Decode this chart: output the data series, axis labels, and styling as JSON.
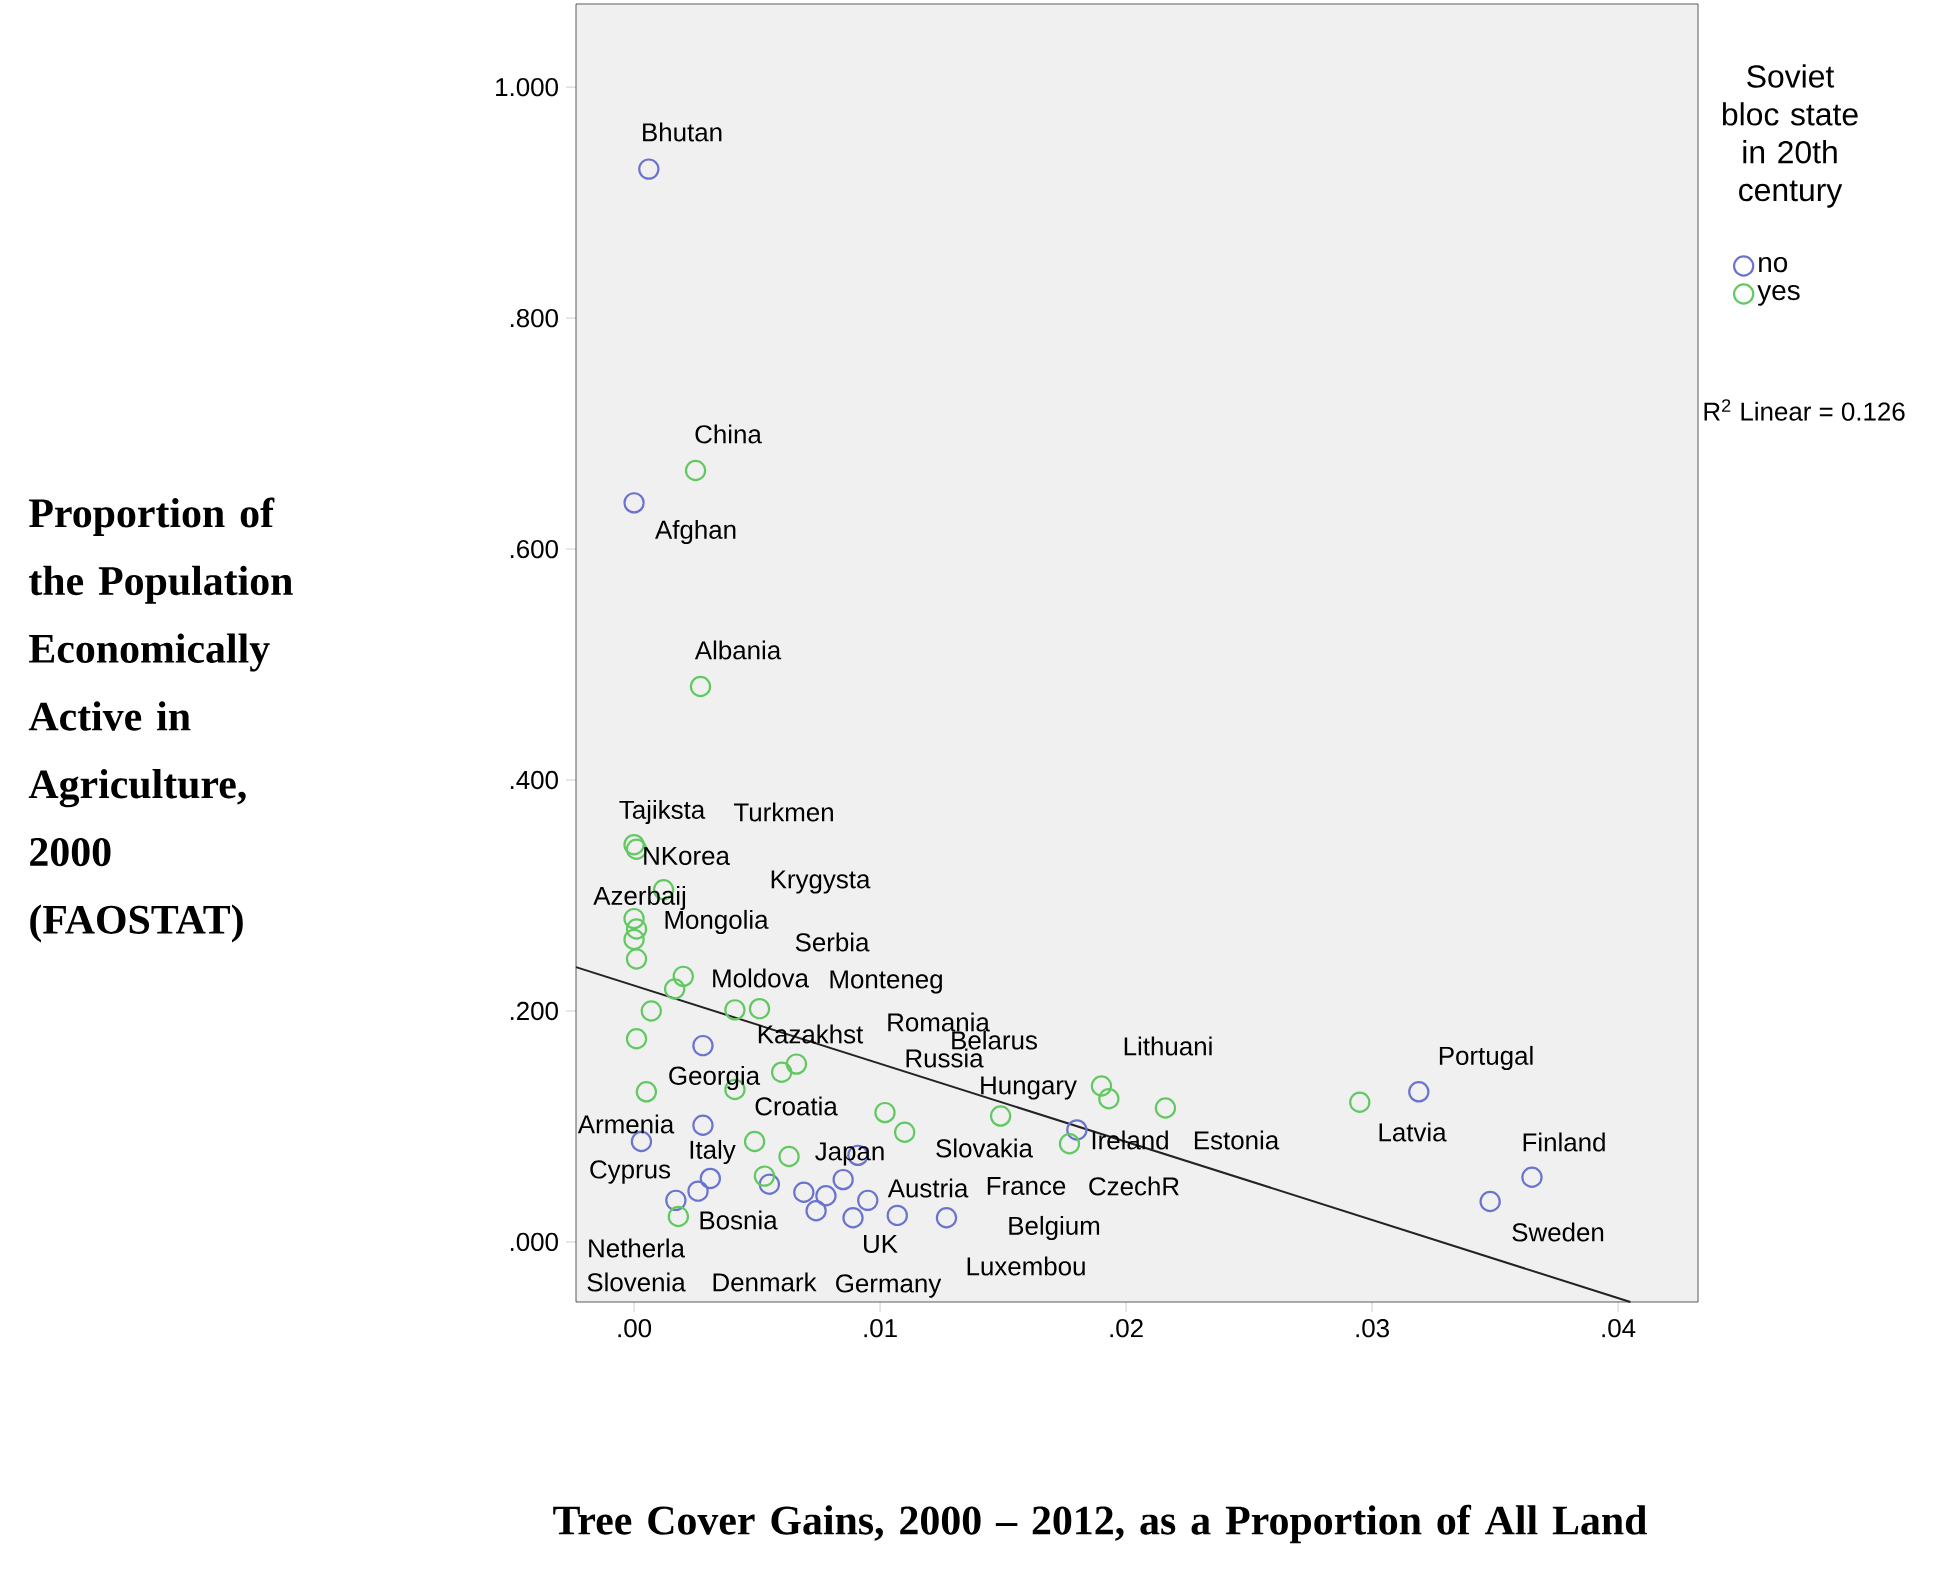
{
  "chart_data": {
    "type": "scatter",
    "xlabel": "Tree Cover Gains, 2000 – 2012, as a Proportion of All Land",
    "ylabel": "Proportion of the Population Economically Active in Agriculture, 2000 (FAOSTAT)",
    "legend_title": "Soviet bloc state in 20th century",
    "legend": "right",
    "marker": "circle",
    "xlim": [
      -0.00236,
      0.04325
    ],
    "ylim": [
      -0.052,
      1.072
    ],
    "xticks": [
      {
        "value": 0,
        "label": ".00"
      },
      {
        "value": 0.01,
        "label": ".01"
      },
      {
        "value": 0.02,
        "label": ".02"
      },
      {
        "value": 0.03,
        "label": ".03"
      },
      {
        "value": 0.04,
        "label": ".04"
      }
    ],
    "yticks": [
      {
        "value": 0,
        "label": ".000"
      },
      {
        "value": 0.2,
        "label": ".200"
      },
      {
        "value": 0.4,
        "label": ".400"
      },
      {
        "value": 0.6,
        "label": ".600"
      },
      {
        "value": 0.8,
        "label": ".800"
      },
      {
        "value": 1.0,
        "label": "1.000"
      }
    ],
    "series": [
      {
        "name": "no",
        "color": "#6a74cf",
        "x": [
          0.0006,
          0.0,
          0.0028,
          0.0028,
          0.0003,
          0.0031,
          0.0026,
          0.0017,
          0.0055,
          0.0069,
          0.0074,
          0.0078,
          0.0085,
          0.0091,
          0.0095,
          0.0089,
          0.0107,
          0.0127,
          0.018,
          0.0319,
          0.0365,
          0.0348
        ],
        "values": [
          0.929,
          0.64,
          0.17,
          0.101,
          0.087,
          0.055,
          0.044,
          0.036,
          0.05,
          0.043,
          0.027,
          0.04,
          0.054,
          0.075,
          0.036,
          0.021,
          0.023,
          0.021,
          0.097,
          0.13,
          0.056,
          0.035
        ]
      },
      {
        "name": "yes",
        "color": "#62c962",
        "x": [
          0.0025,
          0.0027,
          0.0,
          0.0001,
          0.0012,
          0.0,
          0.0001,
          0.0,
          0.0001,
          0.002,
          0.00165,
          0.0041,
          0.0051,
          0.0007,
          0.0001,
          0.0066,
          0.006,
          0.0005,
          0.0041,
          0.0102,
          0.011,
          0.0049,
          0.0063,
          0.0053,
          0.0018,
          0.0149,
          0.019,
          0.0193,
          0.0216,
          0.0177,
          0.0295
        ],
        "values": [
          0.668,
          0.481,
          0.344,
          0.34,
          0.305,
          0.28,
          0.271,
          0.262,
          0.245,
          0.23,
          0.219,
          0.201,
          0.202,
          0.2,
          0.176,
          0.154,
          0.147,
          0.13,
          0.132,
          0.112,
          0.095,
          0.087,
          0.074,
          0.057,
          0.022,
          0.109,
          0.135,
          0.124,
          0.116,
          0.085,
          0.121
        ]
      },
      {
        "type": "line",
        "marker": "none",
        "color": "#222222",
        "x": [
          -0.00236,
          0.0405
        ],
        "values": [
          0.238,
          -0.052
        ]
      }
    ],
    "annotations": [
      "R$^{2}$ Linear = 0.126",
      "Bhutan",
      "China",
      "Afghan",
      "Albania",
      "Tajiksta",
      "Turkmen",
      "NKorea",
      "Krygysta",
      "Azerbaij",
      "Mongolia",
      "Serbia",
      "Moldova",
      "Monteneg",
      "Romania",
      "Belarus",
      "Lithuani",
      "Portugal",
      "Kazakhst",
      "Russia",
      "Georgia",
      "Hungary",
      "Croatia",
      "Armenia",
      "Ireland",
      "Estonia",
      "Latvia",
      "Finland",
      "Slovakia",
      "Italy",
      "Japan",
      "Austria",
      "France",
      "CzechR",
      "Cyprus",
      "Bosnia",
      "Belgium",
      "Sweden",
      "UK",
      "Netherla",
      "Luxembou",
      "Slovenia",
      "Denmark",
      "Germany"
    ]
  }
}
